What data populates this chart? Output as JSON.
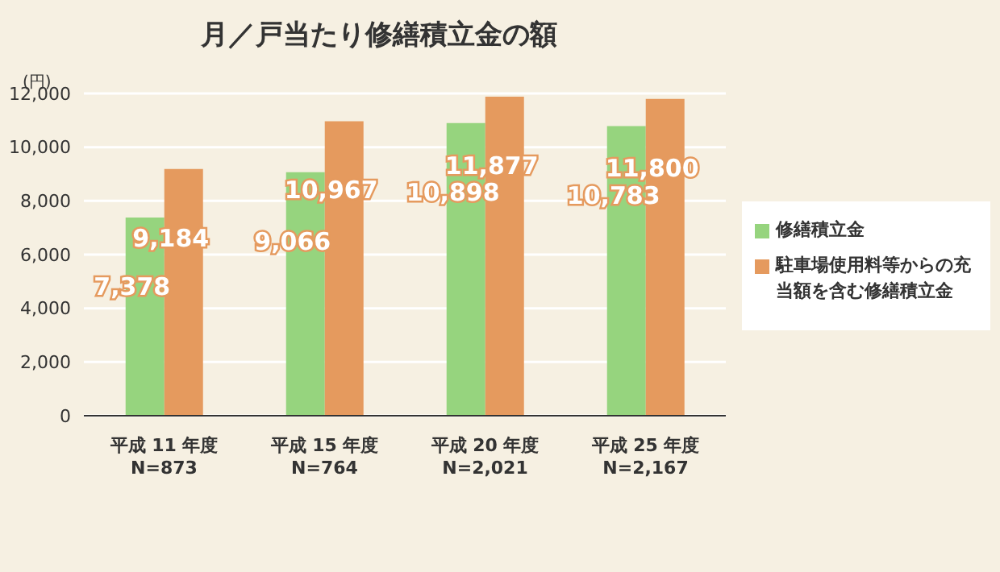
{
  "chart_data": {
    "type": "bar",
    "title": "月／戸当たり修繕積立金の額",
    "ylabel": "(円)",
    "categories": [
      "平成 11 年度\nN=873",
      "平成 15 年度\nN=764",
      "平成 20 年度\nN=2,021",
      "平成 25 年度\nN=2,167"
    ],
    "series": [
      {
        "name": "修繕積立金",
        "color": "#96d47e",
        "values": [
          7378,
          9066,
          10898,
          10783
        ],
        "value_labels": [
          "7,378",
          "9,066",
          "10,898",
          "10,783"
        ]
      },
      {
        "name": "駐車場使用料等からの充当額を含む修繕積立金",
        "color": "#e59a5e",
        "values": [
          9184,
          10967,
          11877,
          11800
        ],
        "value_labels": [
          "9,184",
          "10,967",
          "11,877",
          "11,800"
        ]
      }
    ],
    "ylim": [
      0,
      12000
    ],
    "yticks": [
      {
        "value": 0,
        "label": "0"
      },
      {
        "value": 2000,
        "label": "2,000"
      },
      {
        "value": 4000,
        "label": "4,000"
      },
      {
        "value": 6000,
        "label": "6,000"
      },
      {
        "value": 8000,
        "label": "8,000"
      },
      {
        "value": 10000,
        "label": "10,000"
      },
      {
        "value": 12000,
        "label": "12,000"
      }
    ],
    "grid": "y",
    "legend": "right"
  }
}
